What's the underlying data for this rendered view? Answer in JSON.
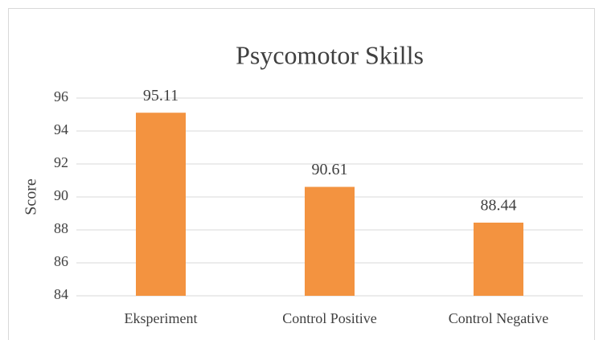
{
  "chart_data": {
    "type": "bar",
    "title": "Psycomotor Skills",
    "y_label": "Score",
    "categories": [
      "Eksperiment",
      "Control Positive",
      "Control Negative"
    ],
    "values": [
      95.11,
      90.61,
      88.44
    ],
    "color": "#f39340",
    "ylim": [
      84,
      96
    ],
    "yticks": [
      84,
      86,
      88,
      90,
      92,
      94,
      96
    ],
    "grid": true
  }
}
